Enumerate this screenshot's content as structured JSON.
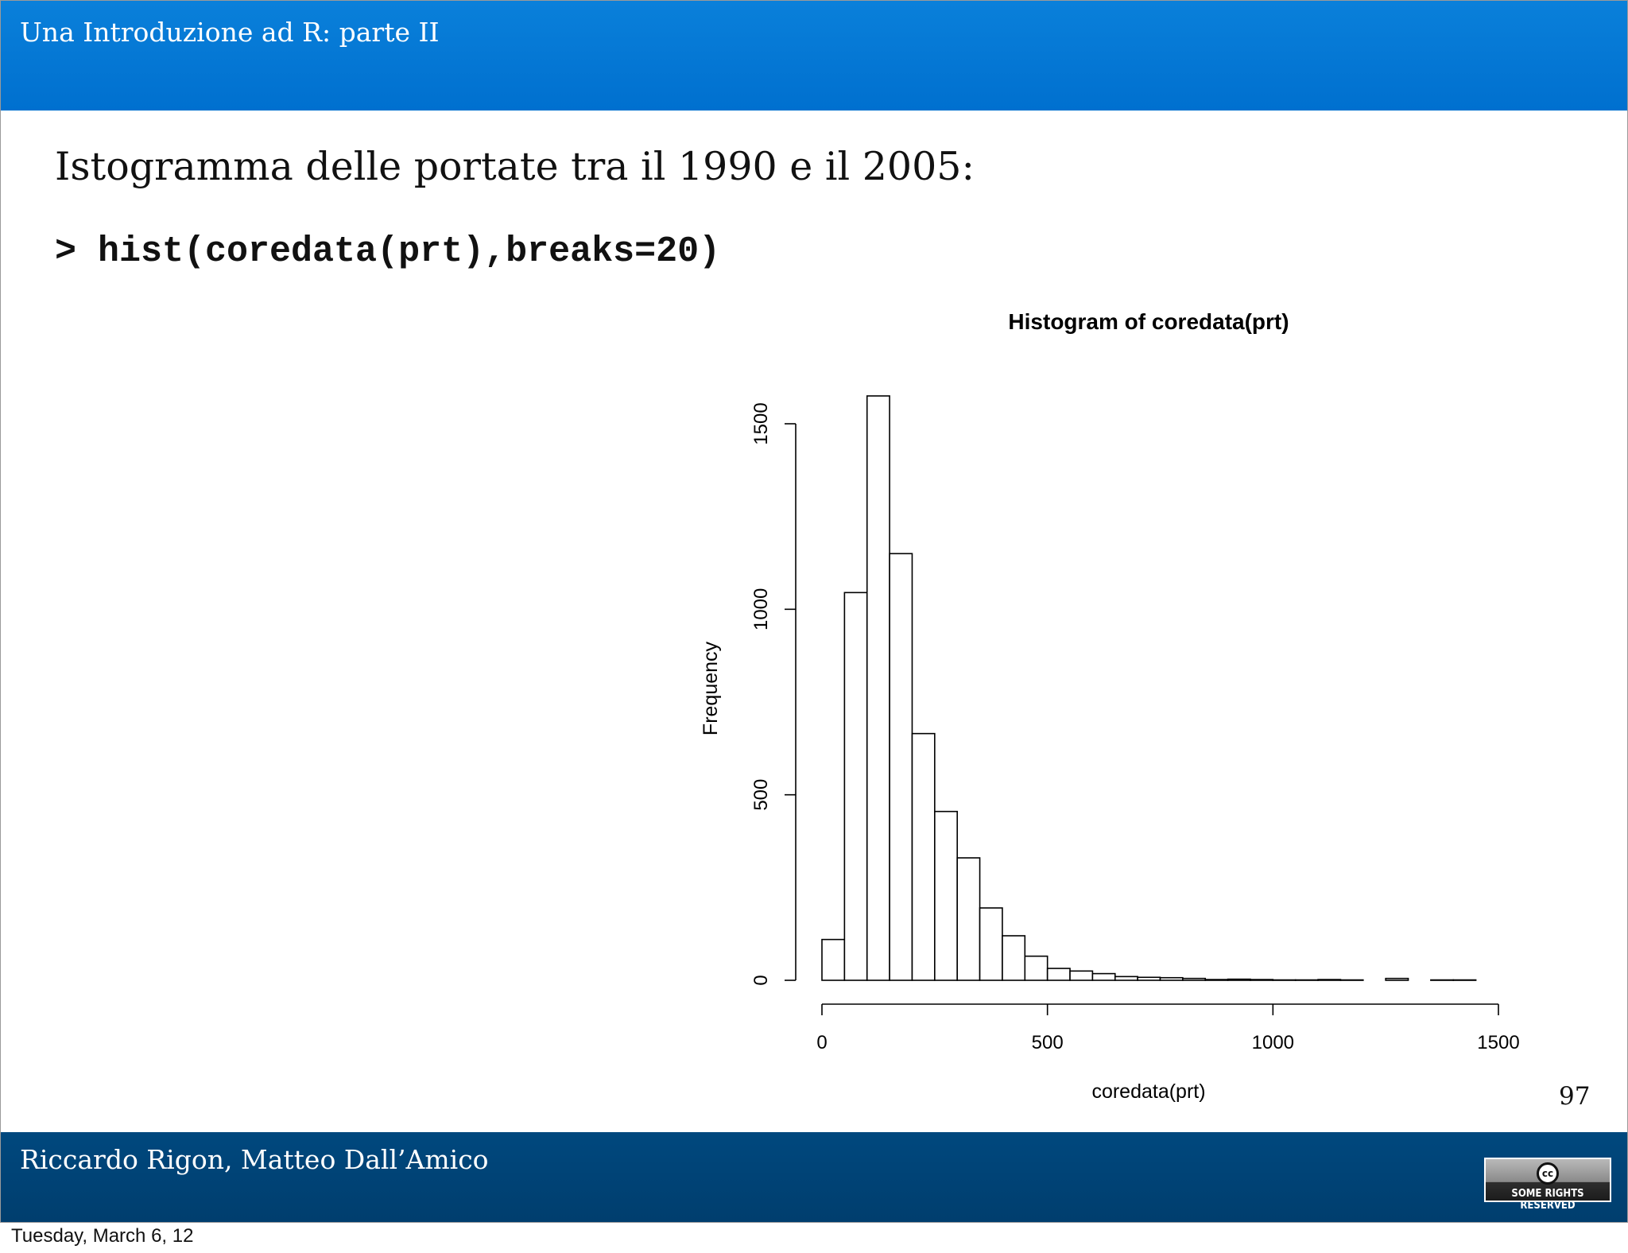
{
  "header": {
    "title": "Una Introduzione ad R: parte II"
  },
  "slide": {
    "heading": "Istogramma delle portate tra il 1990 e il 2005:",
    "code": "> hist(coredata(prt),breaks=20)",
    "page_number": "97"
  },
  "footer": {
    "authors": "Riccardo Rigon, Matteo Dall’Amico",
    "license_badge": {
      "icon": "creative-commons-icon",
      "label": "SOME RIGHTS RESERVED"
    }
  },
  "date_line": "Tuesday, March 6, 12",
  "chart_data": {
    "type": "bar",
    "title": "Histogram of coredata(prt)",
    "xlabel": "coredata(prt)",
    "ylabel": "Frequency",
    "xlim": [
      0,
      1500
    ],
    "ylim": [
      0,
      1500
    ],
    "x_ticks": [
      0,
      500,
      1000,
      1500
    ],
    "y_ticks": [
      0,
      500,
      1000,
      1500
    ],
    "grid": false,
    "bin_edges": [
      0,
      50,
      100,
      150,
      200,
      250,
      300,
      350,
      400,
      450,
      500,
      550,
      600,
      650,
      700,
      750,
      800,
      850,
      900,
      950,
      1000,
      1050,
      1100,
      1150,
      1200,
      1250,
      1300,
      1350,
      1400,
      1450
    ],
    "values": [
      110,
      1045,
      1575,
      1150,
      665,
      455,
      330,
      195,
      120,
      65,
      32,
      25,
      18,
      10,
      8,
      7,
      5,
      2,
      3,
      2,
      1,
      1,
      2,
      1,
      0,
      5,
      0,
      1,
      1
    ]
  }
}
